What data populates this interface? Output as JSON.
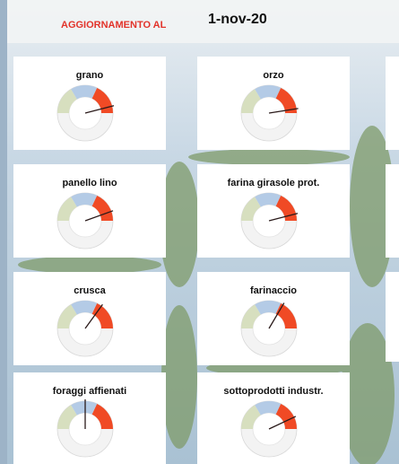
{
  "header": {
    "label": "AGGIORNAMENTO AL",
    "date": "1-nov-20"
  },
  "gauges": [
    {
      "label": "grano",
      "value": 92
    },
    {
      "label": "orzo",
      "value": 95
    },
    {
      "label": "panello lino",
      "value": 89
    },
    {
      "label": "farina girasole prot.",
      "value": 92
    },
    {
      "label": "crusca",
      "value": 70
    },
    {
      "label": "farinaccio",
      "value": 67
    },
    {
      "label": "foraggi affienati",
      "value": 50
    },
    {
      "label": "sottoprodotti industr.",
      "value": 86
    }
  ]
}
